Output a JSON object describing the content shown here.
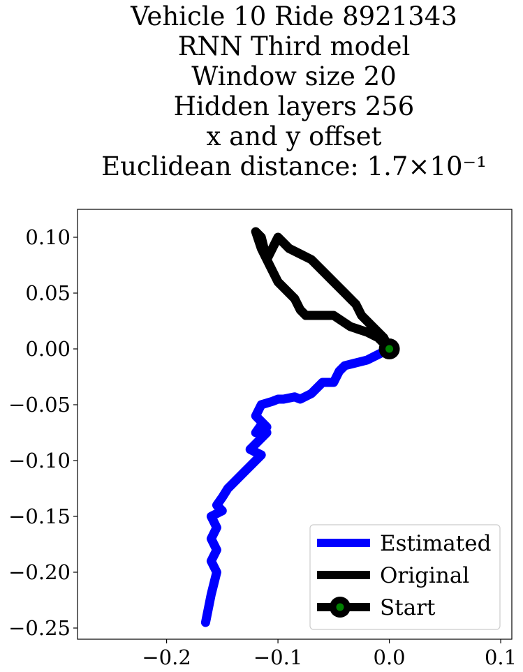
{
  "chart_data": {
    "type": "line",
    "title_lines": [
      "Vehicle 10 Ride 8921343",
      "RNN Third model",
      "Window size 20",
      "Hidden layers 256",
      "x and y offset",
      "Euclidean distance: 1.7×10⁻¹"
    ],
    "xlabel": "",
    "ylabel": "",
    "xlim": [
      -0.28,
      0.11
    ],
    "ylim": [
      -0.26,
      0.125
    ],
    "x_ticks": [
      -0.2,
      -0.1,
      0.0,
      0.1
    ],
    "x_tick_labels": [
      "−0.2",
      "−0.1",
      "0.0",
      "0.1"
    ],
    "y_ticks": [
      0.1,
      0.05,
      0.0,
      -0.05,
      -0.1,
      -0.15,
      -0.2,
      -0.25
    ],
    "y_tick_labels": [
      "0.10",
      "0.05",
      "0.00",
      "−0.05",
      "−0.10",
      "−0.15",
      "−0.20",
      "−0.25"
    ],
    "grid": false,
    "legend_position": "bottom-right",
    "series": [
      {
        "name": "Estimated",
        "color": "#0000ff",
        "x": [
          0.0,
          -0.01,
          -0.02,
          -0.04,
          -0.045,
          -0.05,
          -0.06,
          -0.065,
          -0.07,
          -0.08,
          -0.085,
          -0.095,
          -0.1,
          -0.105,
          -0.115,
          -0.12,
          -0.11,
          -0.115,
          -0.12,
          -0.115,
          -0.11,
          -0.12,
          -0.125,
          -0.115,
          -0.12,
          -0.13,
          -0.14,
          -0.145,
          -0.15,
          -0.155,
          -0.15,
          -0.16,
          -0.155,
          -0.16,
          -0.155,
          -0.16,
          -0.155,
          -0.16,
          -0.165
        ],
        "y": [
          0.0,
          -0.005,
          -0.01,
          -0.015,
          -0.02,
          -0.03,
          -0.03,
          -0.035,
          -0.04,
          -0.045,
          -0.043,
          -0.045,
          -0.045,
          -0.047,
          -0.05,
          -0.06,
          -0.07,
          -0.068,
          -0.075,
          -0.07,
          -0.075,
          -0.085,
          -0.09,
          -0.095,
          -0.1,
          -0.11,
          -0.12,
          -0.125,
          -0.133,
          -0.14,
          -0.145,
          -0.15,
          -0.16,
          -0.17,
          -0.18,
          -0.19,
          -0.2,
          -0.22,
          -0.245
        ]
      },
      {
        "name": "Original",
        "color": "#000000",
        "x": [
          0.0,
          -0.01,
          -0.02,
          -0.035,
          -0.05,
          -0.06,
          -0.075,
          -0.08,
          -0.085,
          -0.095,
          -0.1,
          -0.105,
          -0.11,
          -0.115,
          -0.12,
          -0.115,
          -0.11,
          -0.105,
          -0.1,
          -0.095,
          -0.09,
          -0.08,
          -0.07,
          -0.06,
          -0.05,
          -0.045,
          -0.04,
          -0.035,
          -0.03,
          -0.025,
          -0.015,
          -0.005,
          0.0
        ],
        "y": [
          0.0,
          0.01,
          0.015,
          0.02,
          0.03,
          0.03,
          0.03,
          0.035,
          0.045,
          0.055,
          0.06,
          0.07,
          0.08,
          0.1,
          0.105,
          0.09,
          0.08,
          0.09,
          0.1,
          0.095,
          0.09,
          0.085,
          0.08,
          0.07,
          0.06,
          0.055,
          0.05,
          0.045,
          0.04,
          0.03,
          0.02,
          0.01,
          0.0
        ]
      },
      {
        "name": "Start",
        "color": "#008000",
        "x": [
          0.0
        ],
        "y": [
          0.0
        ]
      }
    ]
  }
}
